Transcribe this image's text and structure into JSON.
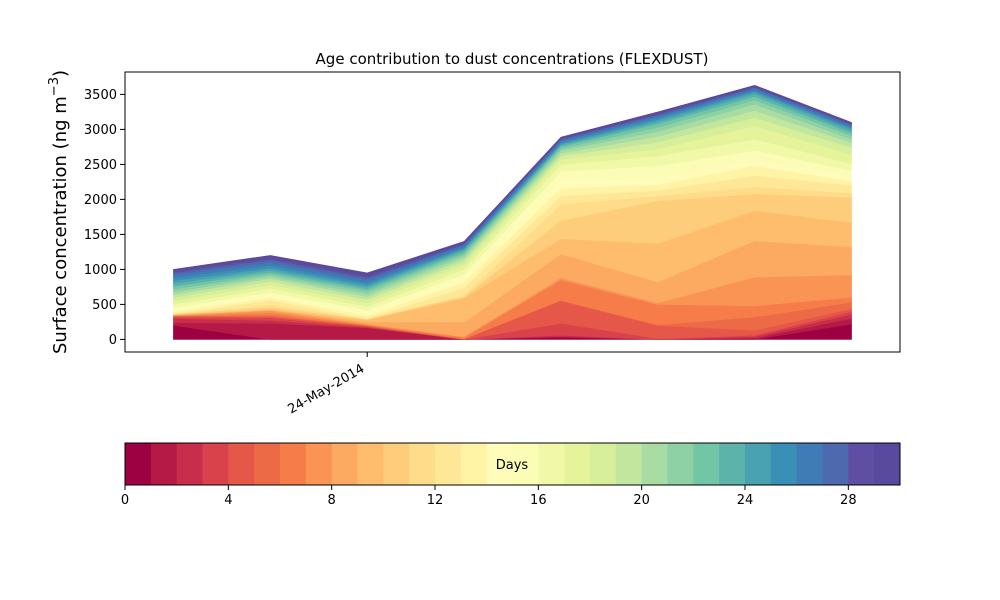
{
  "chart_data": {
    "type": "area",
    "stacked": true,
    "title": "Age contribution to dust concentrations (FLEXDUST)",
    "ylabel": "Surface concentration (ng m",
    "ylabel_superscript": "−3",
    "ylabel_close": ")",
    "xlabel": "",
    "ylim": [
      -180,
      3820
    ],
    "yticks": [
      0,
      500,
      1000,
      1500,
      2000,
      2500,
      3000,
      3500
    ],
    "xticks": [
      {
        "x": 2,
        "label": "24-May-2014"
      }
    ],
    "xlim": [
      -0.5,
      7.5
    ],
    "x": [
      0,
      1,
      2,
      3,
      4,
      5,
      6,
      7
    ],
    "grid": false,
    "age_bins": 30,
    "cumulative": [
      [
        200,
        0,
        0,
        0,
        30,
        0,
        0,
        220
      ],
      [
        240,
        230,
        165,
        0,
        40,
        0,
        20,
        300
      ],
      [
        300,
        270,
        175,
        0,
        60,
        0,
        40,
        360
      ],
      [
        320,
        310,
        185,
        0,
        230,
        10,
        60,
        400
      ],
      [
        330,
        330,
        195,
        5,
        550,
        200,
        130,
        440
      ],
      [
        335,
        345,
        200,
        10,
        560,
        210,
        320,
        530
      ],
      [
        340,
        380,
        210,
        30,
        850,
        500,
        480,
        600
      ],
      [
        345,
        410,
        220,
        40,
        880,
        520,
        890,
        920
      ],
      [
        350,
        420,
        250,
        245,
        1220,
        820,
        1410,
        1320
      ],
      [
        355,
        430,
        280,
        590,
        1440,
        1370,
        1840,
        1670
      ],
      [
        360,
        460,
        290,
        610,
        1700,
        1980,
        2080,
        2030
      ],
      [
        365,
        495,
        295,
        630,
        1930,
        2050,
        2180,
        2090
      ],
      [
        370,
        560,
        300,
        740,
        2050,
        2130,
        2340,
        2200
      ],
      [
        400,
        600,
        340,
        820,
        2160,
        2210,
        2480,
        2260
      ],
      [
        430,
        630,
        380,
        870,
        2300,
        2300,
        2560,
        2330
      ],
      [
        460,
        670,
        420,
        930,
        2400,
        2480,
        2700,
        2410
      ],
      [
        500,
        730,
        470,
        1000,
        2500,
        2620,
        2860,
        2510
      ],
      [
        550,
        780,
        520,
        1060,
        2570,
        2720,
        3050,
        2640
      ],
      [
        600,
        830,
        570,
        1110,
        2620,
        2820,
        3170,
        2740
      ],
      [
        640,
        870,
        610,
        1150,
        2660,
        2900,
        3270,
        2810
      ],
      [
        680,
        900,
        650,
        1190,
        2700,
        2970,
        3360,
        2860
      ],
      [
        720,
        930,
        690,
        1220,
        2730,
        3030,
        3420,
        2910
      ],
      [
        760,
        960,
        720,
        1250,
        2760,
        3080,
        3470,
        2950
      ],
      [
        800,
        990,
        750,
        1280,
        2780,
        3110,
        3510,
        2980
      ],
      [
        840,
        1020,
        780,
        1300,
        2800,
        3140,
        3540,
        3010
      ],
      [
        880,
        1060,
        810,
        1320,
        2820,
        3170,
        3560,
        3030
      ],
      [
        920,
        1100,
        850,
        1340,
        2840,
        3190,
        3580,
        3050
      ],
      [
        950,
        1140,
        880,
        1360,
        2860,
        3210,
        3600,
        3070
      ],
      [
        980,
        1170,
        910,
        1380,
        2870,
        3230,
        3610,
        3085
      ],
      [
        1000,
        1200,
        950,
        1400,
        2890,
        3250,
        3630,
        3100
      ]
    ],
    "colorbar": {
      "label": "Days",
      "range": [
        0,
        30
      ],
      "ticks": [
        0,
        4,
        8,
        12,
        16,
        20,
        24,
        28
      ]
    },
    "colors": [
      "#9e0142",
      "#b51a47",
      "#c82e4b",
      "#d9424b",
      "#e55749",
      "#ed6a47",
      "#f67d4a",
      "#f99455",
      "#fca961",
      "#fdbd6d",
      "#fdcd7b",
      "#fedc8a",
      "#fee897",
      "#fff3a6",
      "#fffbb8",
      "#fbfdb7",
      "#f1f9a9",
      "#e5f49b",
      "#d7ee9b",
      "#c3e69f",
      "#a8dca2",
      "#8dd1a4",
      "#72c6a5",
      "#5cb3aa",
      "#49a2b1",
      "#3a8fb7",
      "#3f7cb6",
      "#4f69af",
      "#5e4fa2",
      "#5a4a9e"
    ]
  }
}
